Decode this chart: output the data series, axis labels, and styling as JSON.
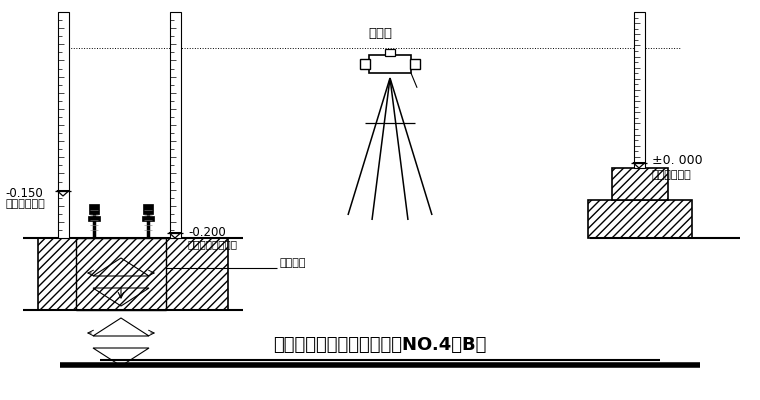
{
  "title": "钢柱柱底标高引测示意图（NO.4－B）",
  "bg_color": "#ffffff",
  "line_color": "#000000",
  "title_fontsize": 13,
  "annotations": {
    "elevation_left": "-0.150",
    "elevation_left_label": "（柱顶标高）",
    "elevation_mid": "-0.200",
    "elevation_mid_label": "（一次浇筑标高）",
    "instrument_label": "水准仪",
    "rebar_label": "钢筋砼柱",
    "elevation_right": "±0. 000",
    "elevation_right_label": "（基准标高）"
  },
  "font_path_hints": [
    "SimHei",
    "Microsoft YaHei",
    "WenQuanYi Micro Hei",
    "Noto Sans CJK SC",
    "DejaVu Sans"
  ]
}
